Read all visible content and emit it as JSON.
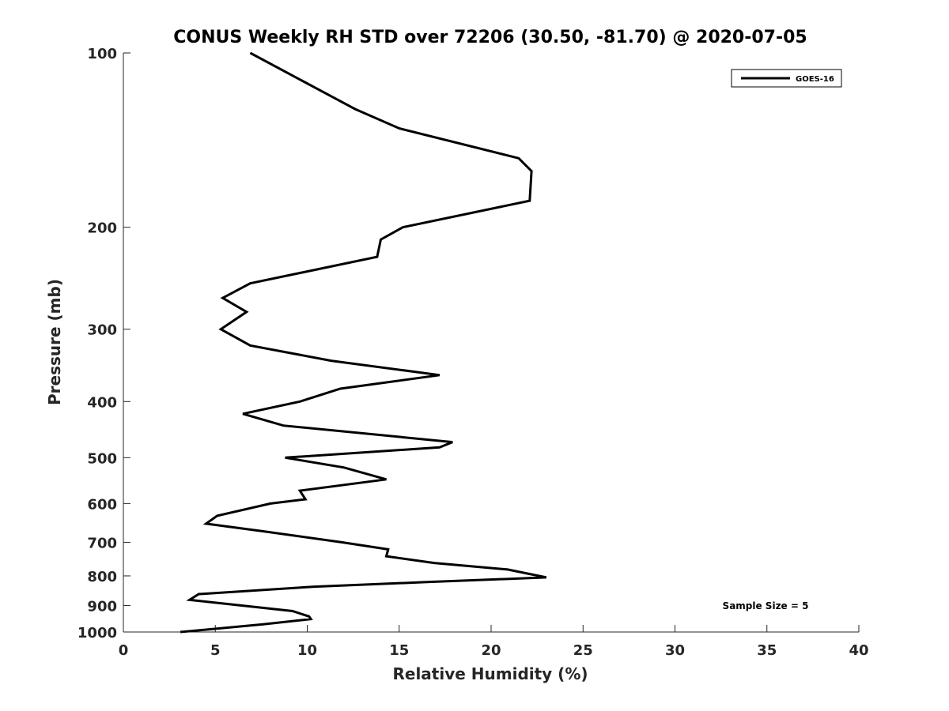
{
  "chart_data": {
    "type": "line",
    "title": "CONUS Weekly RH STD over 72206 (30.50, -81.70) @ 2020-07-05",
    "xlabel": "Relative Humidity (%)",
    "ylabel": "Pressure (mb)",
    "xlim": [
      0,
      40
    ],
    "ylim": [
      100,
      1000
    ],
    "y_scale": "log",
    "y_reversed": true,
    "x_ticks": [
      0,
      5,
      10,
      15,
      20,
      25,
      30,
      35,
      40
    ],
    "y_ticks": [
      100,
      200,
      300,
      400,
      500,
      600,
      700,
      800,
      900,
      1000
    ],
    "grid": false,
    "legend_position": "top-right",
    "annotation": "Sample Size = 5",
    "series": [
      {
        "name": "GOES-16",
        "color": "#000000",
        "points": [
          [
            6.9,
            100
          ],
          [
            12.6,
            125
          ],
          [
            15.0,
            135
          ],
          [
            21.5,
            152
          ],
          [
            22.2,
            160
          ],
          [
            22.1,
            180
          ],
          [
            15.2,
            200
          ],
          [
            14.0,
            210
          ],
          [
            13.8,
            225
          ],
          [
            6.9,
            250
          ],
          [
            5.4,
            265
          ],
          [
            6.7,
            280
          ],
          [
            5.3,
            300
          ],
          [
            6.9,
            320
          ],
          [
            11.3,
            340
          ],
          [
            17.2,
            360
          ],
          [
            11.8,
            380
          ],
          [
            9.6,
            400
          ],
          [
            6.5,
            420
          ],
          [
            8.7,
            440
          ],
          [
            17.9,
            470
          ],
          [
            17.2,
            480
          ],
          [
            8.8,
            500
          ],
          [
            12.0,
            520
          ],
          [
            14.3,
            545
          ],
          [
            9.6,
            570
          ],
          [
            9.9,
            590
          ],
          [
            8.0,
            600
          ],
          [
            5.1,
            630
          ],
          [
            4.5,
            650
          ],
          [
            7.6,
            670
          ],
          [
            11.9,
            700
          ],
          [
            14.4,
            720
          ],
          [
            14.3,
            740
          ],
          [
            16.9,
            760
          ],
          [
            20.9,
            780
          ],
          [
            23.0,
            805
          ],
          [
            16.5,
            820
          ],
          [
            10.4,
            835
          ],
          [
            4.1,
            860
          ],
          [
            3.6,
            880
          ],
          [
            9.2,
            920
          ],
          [
            10.1,
            940
          ],
          [
            10.2,
            950
          ],
          [
            7.6,
            970
          ],
          [
            3.1,
            1000
          ]
        ]
      }
    ]
  }
}
